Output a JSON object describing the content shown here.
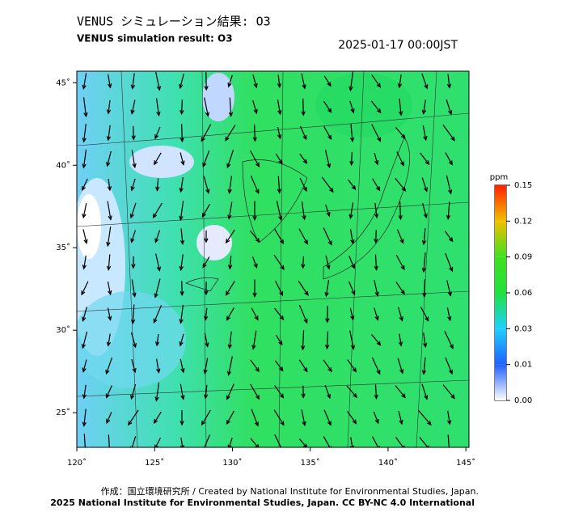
{
  "header": {
    "title": "VENUS シミュレーション結果: O3",
    "subtitle": "VENUS simulation result: O3",
    "timestamp": "2025-01-17 00:00JST"
  },
  "map": {
    "xlim": [
      120,
      145.2
    ],
    "ylim": [
      22.9,
      45.7
    ],
    "xticks": [
      {
        "value": 120,
        "label": "120˚"
      },
      {
        "value": 125,
        "label": "125˚"
      },
      {
        "value": 130,
        "label": "130˚"
      },
      {
        "value": 135,
        "label": "135˚"
      },
      {
        "value": 140,
        "label": "140˚"
      },
      {
        "value": 145,
        "label": "145˚"
      }
    ],
    "yticks": [
      {
        "value": 25,
        "label": "25˚"
      },
      {
        "value": 30,
        "label": "30˚"
      },
      {
        "value": 35,
        "label": "35˚"
      },
      {
        "value": 40,
        "label": "40˚"
      },
      {
        "value": 45,
        "label": "45˚"
      }
    ]
  },
  "colorbar": {
    "unit": "ppm",
    "ticks": [
      {
        "value": 0,
        "label": "0.00"
      },
      {
        "value": 0.01,
        "label": "0.01"
      },
      {
        "value": 0.03,
        "label": "0.03"
      },
      {
        "value": 0.06,
        "label": "0.06"
      },
      {
        "value": 0.09,
        "label": "0.09"
      },
      {
        "value": 0.12,
        "label": "0.12"
      },
      {
        "value": 0.15,
        "label": "0.15"
      }
    ]
  },
  "footer": {
    "credit": "作成：国立環境研究所 / Created by National Institute for Environmental Studies, Japan.",
    "copyright": "2025 National Institute for Environmental Studies, Japan. CC BY-NC 4.0 International"
  }
}
